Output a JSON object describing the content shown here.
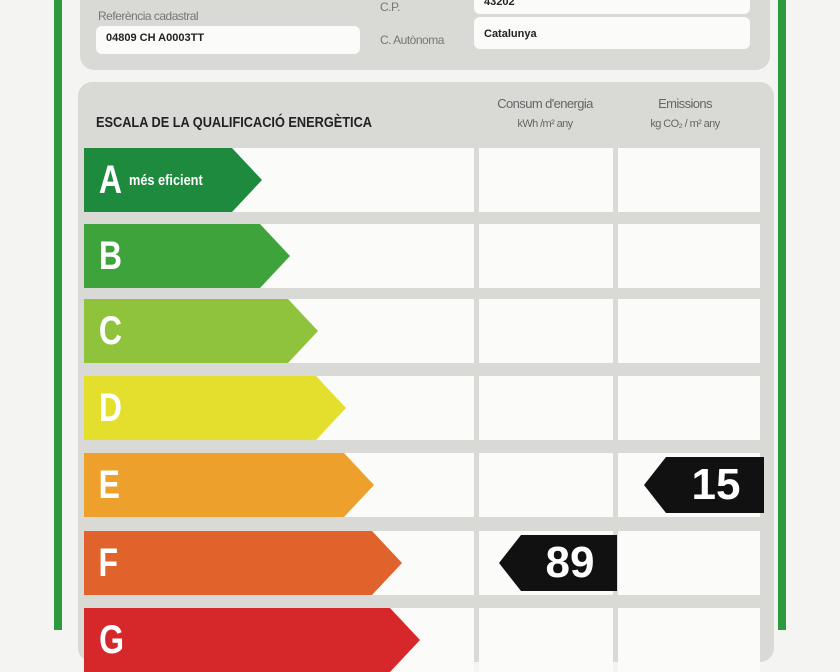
{
  "header": {
    "ref_label": "Referència cadastral",
    "ref_value": "04809 CH A0003TT",
    "cp_label": "C.P.",
    "cp_value": "43202",
    "ca_label": "C. Autònoma",
    "ca_value": "Catalunya"
  },
  "scale": {
    "title": "ESCALA DE LA QUALIFICACIÓ ENERGÈTICA",
    "consum_label": "Consum d'energia",
    "consum_unit": "kWh /m² any",
    "emissions_label": "Emissions",
    "emissions_unit": "kg CO₂ / m² any",
    "ratings": [
      {
        "letter": "A",
        "sub": "més eficient",
        "color": "#1d8a3e"
      },
      {
        "letter": "B",
        "color": "#3fa33b"
      },
      {
        "letter": "C",
        "color": "#8fc33c"
      },
      {
        "letter": "D",
        "color": "#e4df2c"
      },
      {
        "letter": "E",
        "color": "#eda12c"
      },
      {
        "letter": "F",
        "color": "#df632b"
      },
      {
        "letter": "G",
        "color": "#d6282b"
      }
    ],
    "consum_value": "89",
    "consum_rating": "F",
    "emissions_value": "15",
    "emissions_rating": "E"
  }
}
